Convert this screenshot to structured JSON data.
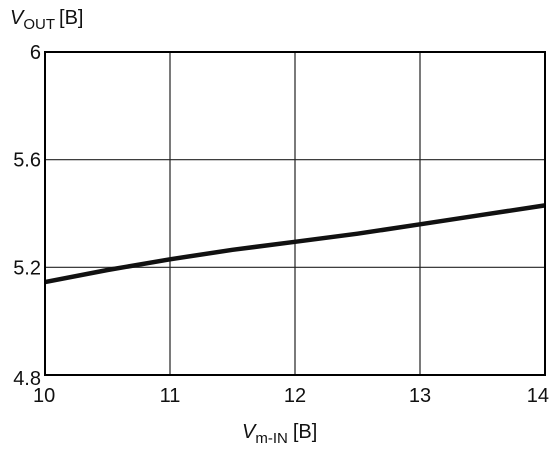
{
  "chart_data": {
    "type": "line",
    "title": "",
    "ylabel": {
      "symbol": "V",
      "subscript": "OUT",
      "unit": "[B]"
    },
    "xlabel": {
      "symbol": "V",
      "subscript": "m-IN",
      "unit": "[B]"
    },
    "x_ticks": [
      "10",
      "11",
      "12",
      "13",
      "14"
    ],
    "y_ticks": [
      "4.8",
      "5.2",
      "5.6",
      "6"
    ],
    "xlim": [
      10,
      14
    ],
    "ylim": [
      4.8,
      6
    ],
    "grid": true,
    "legend": "none",
    "series": [
      {
        "x": [
          10,
          10.5,
          11,
          11.5,
          12,
          12.5,
          13,
          13.5,
          14
        ],
        "y": [
          5.145,
          5.19,
          5.23,
          5.265,
          5.295,
          5.325,
          5.36,
          5.395,
          5.43
        ]
      }
    ],
    "colors": {
      "line": "#111111",
      "grid": "#222222",
      "frame": "#000000",
      "background": "#ffffff"
    }
  }
}
